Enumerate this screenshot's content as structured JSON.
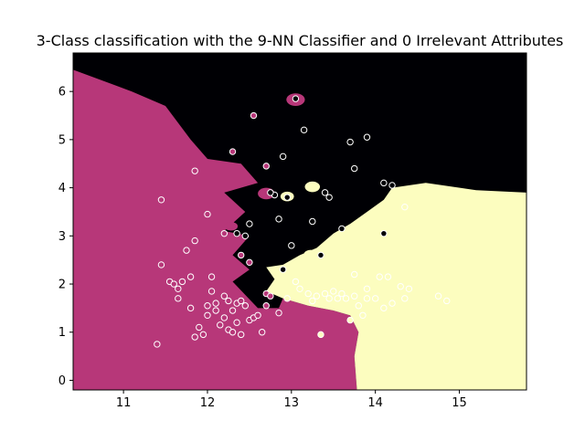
{
  "chart_data": {
    "type": "scatter",
    "title": "3-Class classification with the 9-NN Classifier and 0 Irrelevant Attributes",
    "xlabel": "",
    "ylabel": "",
    "xlim": [
      10.4,
      15.8
    ],
    "ylim": [
      -0.2,
      6.8
    ],
    "xticks": [
      11,
      12,
      13,
      14,
      15
    ],
    "xtick_labels": [
      "11",
      "12",
      "13",
      "14",
      "15"
    ],
    "yticks": [
      0,
      1,
      2,
      3,
      4,
      5,
      6
    ],
    "ytick_labels": [
      "0",
      "1",
      "2",
      "3",
      "4",
      "5",
      "6"
    ],
    "grid": false,
    "region_colors": {
      "class_0": "#000004",
      "class_1": "#b73779",
      "class_2": "#fcfdbf"
    },
    "regions": [
      {
        "class": "class_0",
        "polygon": [
          [
            10.4,
            6.8
          ],
          [
            15.8,
            6.8
          ],
          [
            15.8,
            3.9
          ],
          [
            15.2,
            3.95
          ],
          [
            14.6,
            4.1
          ],
          [
            14.2,
            4.0
          ],
          [
            14.1,
            3.75
          ],
          [
            13.9,
            3.5
          ],
          [
            13.7,
            3.25
          ],
          [
            13.5,
            3.05
          ],
          [
            13.3,
            2.75
          ],
          [
            13.1,
            2.6
          ],
          [
            12.9,
            2.4
          ],
          [
            12.7,
            2.35
          ],
          [
            12.8,
            2.1
          ],
          [
            12.7,
            1.85
          ],
          [
            12.9,
            1.7
          ],
          [
            12.85,
            1.5
          ],
          [
            12.6,
            1.5
          ],
          [
            12.3,
            2.05
          ],
          [
            12.5,
            2.3
          ],
          [
            12.3,
            2.6
          ],
          [
            12.5,
            3.0
          ],
          [
            12.2,
            3.1
          ],
          [
            12.45,
            3.5
          ],
          [
            12.2,
            3.9
          ],
          [
            12.6,
            4.1
          ],
          [
            12.4,
            4.5
          ],
          [
            12.0,
            4.6
          ],
          [
            11.8,
            5.0
          ],
          [
            11.5,
            5.7
          ],
          [
            11.1,
            6.0
          ],
          [
            10.4,
            6.45
          ]
        ]
      },
      {
        "class": "class_1",
        "polygon": [
          [
            10.4,
            -0.2
          ],
          [
            10.4,
            6.45
          ],
          [
            11.1,
            6.0
          ],
          [
            11.5,
            5.7
          ],
          [
            11.8,
            5.0
          ],
          [
            12.0,
            4.6
          ],
          [
            12.4,
            4.5
          ],
          [
            12.6,
            4.1
          ],
          [
            12.2,
            3.9
          ],
          [
            12.45,
            3.5
          ],
          [
            12.2,
            3.1
          ],
          [
            12.5,
            3.0
          ],
          [
            12.3,
            2.6
          ],
          [
            12.5,
            2.3
          ],
          [
            12.3,
            2.05
          ],
          [
            12.6,
            1.5
          ],
          [
            12.85,
            1.5
          ],
          [
            12.9,
            1.7
          ],
          [
            13.2,
            1.55
          ],
          [
            13.5,
            1.45
          ],
          [
            13.7,
            1.35
          ],
          [
            13.8,
            1.0
          ],
          [
            13.75,
            0.5
          ],
          [
            13.78,
            -0.2
          ]
        ]
      },
      {
        "class": "class_2",
        "polygon": [
          [
            13.78,
            -0.2
          ],
          [
            13.75,
            0.5
          ],
          [
            13.8,
            1.0
          ],
          [
            13.7,
            1.35
          ],
          [
            13.5,
            1.45
          ],
          [
            13.2,
            1.55
          ],
          [
            12.9,
            1.7
          ],
          [
            12.7,
            1.85
          ],
          [
            12.8,
            2.1
          ],
          [
            12.7,
            2.35
          ],
          [
            12.9,
            2.4
          ],
          [
            13.1,
            2.6
          ],
          [
            13.3,
            2.75
          ],
          [
            13.5,
            3.05
          ],
          [
            13.7,
            3.25
          ],
          [
            13.9,
            3.5
          ],
          [
            14.1,
            3.75
          ],
          [
            14.2,
            4.0
          ],
          [
            14.6,
            4.1
          ],
          [
            15.2,
            3.95
          ],
          [
            15.8,
            3.9
          ],
          [
            15.8,
            -0.2
          ]
        ]
      }
    ],
    "islands": [
      {
        "class": "class_1",
        "x": 13.05,
        "y": 5.83,
        "rx": 0.11,
        "ry": 0.13
      },
      {
        "class": "class_1",
        "x": 12.7,
        "y": 3.88,
        "rx": 0.1,
        "ry": 0.12
      },
      {
        "class": "class_1",
        "x": 12.28,
        "y": 3.2,
        "rx": 0.08,
        "ry": 0.09
      },
      {
        "class": "class_2",
        "x": 12.95,
        "y": 3.82,
        "rx": 0.08,
        "ry": 0.1
      },
      {
        "class": "class_2",
        "x": 13.25,
        "y": 4.02,
        "rx": 0.09,
        "ry": 0.11
      },
      {
        "class": "class_2",
        "x": 13.23,
        "y": 2.62,
        "rx": 0.08,
        "ry": 0.09
      },
      {
        "class": "class_2",
        "x": 13.65,
        "y": 3.1,
        "rx": 0.07,
        "ry": 0.08
      }
    ],
    "points": {
      "x": [
        11.4,
        11.45,
        11.55,
        11.6,
        11.65,
        11.65,
        11.7,
        11.75,
        11.8,
        11.8,
        11.85,
        11.85,
        11.9,
        11.95,
        12.0,
        12.0,
        12.05,
        12.05,
        12.1,
        12.1,
        12.15,
        12.2,
        12.2,
        12.25,
        12.25,
        12.3,
        12.3,
        12.35,
        12.35,
        12.4,
        12.4,
        12.45,
        12.5,
        12.5,
        12.55,
        12.6,
        12.65,
        12.7,
        12.7,
        12.75,
        12.85,
        12.95,
        13.05,
        13.1,
        13.2,
        13.25,
        13.3,
        13.35,
        13.4,
        13.45,
        13.5,
        13.55,
        13.6,
        13.65,
        13.7,
        13.75,
        13.8,
        13.85,
        13.9,
        14.0,
        14.1,
        14.15,
        14.2,
        14.3,
        14.35,
        14.4,
        14.75,
        14.85,
        13.9,
        13.75,
        14.05,
        14.1,
        14.35,
        11.45,
        11.85,
        12.0,
        12.2,
        12.3,
        12.4,
        12.55,
        12.7,
        12.8,
        12.85,
        12.9,
        12.95,
        13.0,
        13.05,
        13.15,
        13.25,
        13.35,
        13.4,
        13.45,
        13.6,
        13.7,
        13.75,
        13.9,
        14.1,
        14.2,
        12.35,
        12.5,
        12.45,
        12.9,
        12.75
      ],
      "y": [
        0.75,
        2.4,
        2.05,
        2.0,
        1.9,
        1.7,
        2.05,
        2.7,
        2.15,
        1.5,
        0.9,
        2.9,
        1.1,
        0.95,
        1.55,
        1.35,
        1.85,
        2.15,
        1.45,
        1.6,
        1.15,
        1.75,
        1.3,
        1.05,
        1.65,
        1.45,
        1.0,
        1.2,
        1.6,
        0.95,
        1.65,
        1.55,
        1.25,
        2.45,
        1.3,
        1.35,
        1.0,
        1.55,
        1.8,
        1.75,
        1.4,
        1.7,
        2.05,
        1.9,
        1.8,
        1.65,
        1.75,
        0.95,
        1.8,
        1.7,
        1.85,
        1.7,
        1.8,
        1.7,
        1.25,
        1.75,
        1.55,
        1.35,
        1.9,
        1.7,
        1.5,
        2.15,
        1.6,
        1.95,
        1.7,
        1.9,
        1.75,
        1.65,
        1.7,
        2.2,
        2.15,
        4.1,
        3.6,
        3.75,
        4.35,
        3.45,
        3.05,
        4.75,
        2.6,
        5.5,
        4.45,
        3.85,
        3.35,
        4.65,
        3.8,
        2.8,
        5.85,
        5.2,
        3.3,
        2.6,
        3.9,
        3.8,
        3.15,
        4.95,
        4.4,
        5.05,
        3.05,
        4.05,
        3.05,
        3.25,
        3.0,
        2.3,
        3.9
      ],
      "class": [
        1,
        1,
        1,
        1,
        1,
        1,
        1,
        1,
        1,
        1,
        1,
        1,
        1,
        1,
        1,
        1,
        1,
        1,
        1,
        1,
        1,
        1,
        1,
        1,
        1,
        1,
        1,
        1,
        1,
        1,
        1,
        1,
        1,
        1,
        1,
        1,
        1,
        1,
        1,
        1,
        1,
        2,
        2,
        2,
        2,
        2,
        2,
        2,
        2,
        2,
        2,
        2,
        2,
        2,
        2,
        2,
        2,
        2,
        2,
        2,
        2,
        2,
        2,
        2,
        2,
        2,
        2,
        2,
        2,
        2,
        2,
        0,
        2,
        1,
        1,
        1,
        1,
        1,
        1,
        1,
        1,
        0,
        0,
        0,
        0,
        0,
        0,
        0,
        0,
        0,
        0,
        0,
        0,
        0,
        0,
        0,
        0,
        0,
        0,
        0,
        0,
        0,
        0
      ]
    }
  }
}
